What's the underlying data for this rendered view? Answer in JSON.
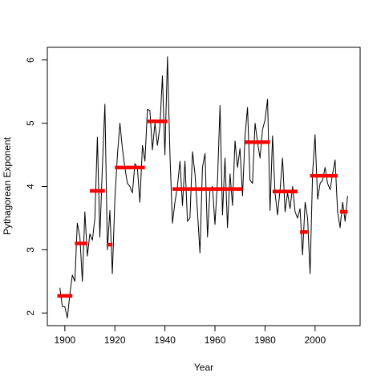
{
  "chart_data": {
    "type": "line",
    "title": "",
    "xlabel": "Year",
    "ylabel": "Pythagorean Exponent",
    "xlim": [
      1893,
      2018
    ],
    "ylim": [
      1.8,
      6.2
    ],
    "x_ticks": [
      1900,
      1920,
      1940,
      1960,
      1980,
      2000
    ],
    "y_ticks": [
      2,
      3,
      4,
      5,
      6
    ],
    "grid": false,
    "legend": "none",
    "colors": {
      "line": "#000000",
      "segments": "#ff0000"
    },
    "series": [
      {
        "x": [
          1898,
          1899,
          1900,
          1901,
          1902,
          1903,
          1904,
          1905,
          1906,
          1907,
          1908,
          1909,
          1910,
          1911,
          1912,
          1913,
          1914,
          1915,
          1916,
          1917,
          1918,
          1919,
          1920,
          1921,
          1922,
          1923,
          1924,
          1925,
          1926,
          1927,
          1928,
          1929,
          1930,
          1931,
          1932,
          1933,
          1934,
          1935,
          1936,
          1937,
          1938,
          1939,
          1940,
          1941,
          1942,
          1943,
          1944,
          1945,
          1946,
          1947,
          1948,
          1949,
          1950,
          1951,
          1952,
          1953,
          1954,
          1955,
          1956,
          1957,
          1958,
          1959,
          1960,
          1961,
          1962,
          1963,
          1964,
          1965,
          1966,
          1967,
          1968,
          1969,
          1970,
          1971,
          1972,
          1973,
          1974,
          1975,
          1976,
          1977,
          1978,
          1979,
          1980,
          1981,
          1982,
          1983,
          1984,
          1985,
          1986,
          1987,
          1988,
          1989,
          1990,
          1991,
          1992,
          1993,
          1994,
          1995,
          1996,
          1997,
          1998,
          1999,
          2000,
          2001,
          2002,
          2003,
          2004,
          2005,
          2006,
          2007,
          2008,
          2009,
          2010,
          2011,
          2012,
          2013
        ],
        "y": [
          2.4,
          2.1,
          2.1,
          1.92,
          2.3,
          2.6,
          2.5,
          3.42,
          3.2,
          2.5,
          3.6,
          2.9,
          3.25,
          3.15,
          3.5,
          4.78,
          3.2,
          4.3,
          5.3,
          3.0,
          3.62,
          2.62,
          3.8,
          4.5,
          5.0,
          4.6,
          4.3,
          4.05,
          4.0,
          3.9,
          4.36,
          4.3,
          3.75,
          4.65,
          4.4,
          5.22,
          5.2,
          4.58,
          5.0,
          4.65,
          4.95,
          5.75,
          4.5,
          6.05,
          4.5,
          3.42,
          3.75,
          4.0,
          4.4,
          3.7,
          4.4,
          3.45,
          3.5,
          4.55,
          4.2,
          3.6,
          2.95,
          4.3,
          4.52,
          3.2,
          3.95,
          4.0,
          3.4,
          4.1,
          5.28,
          3.55,
          4.45,
          3.35,
          4.2,
          3.7,
          4.72,
          4.3,
          4.6,
          3.85,
          4.8,
          5.25,
          4.1,
          4.05,
          5.0,
          4.7,
          4.45,
          4.9,
          5.05,
          5.38,
          3.62,
          4.8,
          3.9,
          3.55,
          3.95,
          4.45,
          3.6,
          3.9,
          3.65,
          4.0,
          3.6,
          3.5,
          3.65,
          2.92,
          3.75,
          3.5,
          2.62,
          4.2,
          4.82,
          3.8,
          4.05,
          4.1,
          4.3,
          4.05,
          3.95,
          4.2,
          4.42,
          3.6,
          3.35,
          3.75,
          3.45,
          3.85
        ]
      }
    ],
    "segments": [
      {
        "x0": 1897,
        "x1": 1903,
        "y": 2.27
      },
      {
        "x0": 1904,
        "x1": 1909,
        "y": 3.1
      },
      {
        "x0": 1910,
        "x1": 1916,
        "y": 3.93
      },
      {
        "x0": 1917,
        "x1": 1919,
        "y": 3.08
      },
      {
        "x0": 1920,
        "x1": 1932,
        "y": 4.3
      },
      {
        "x0": 1933,
        "x1": 1941,
        "y": 5.03
      },
      {
        "x0": 1943,
        "x1": 1971,
        "y": 3.96
      },
      {
        "x0": 1972,
        "x1": 1982,
        "y": 4.7
      },
      {
        "x0": 1983,
        "x1": 1993,
        "y": 3.92
      },
      {
        "x0": 1994,
        "x1": 1997,
        "y": 3.28
      },
      {
        "x0": 1998,
        "x1": 2009,
        "y": 4.17
      },
      {
        "x0": 2010,
        "x1": 2013,
        "y": 3.6
      }
    ]
  }
}
